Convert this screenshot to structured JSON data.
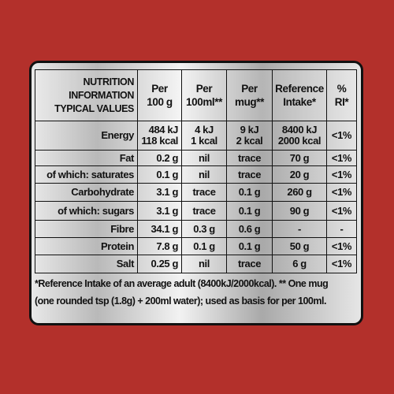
{
  "table": {
    "header": [
      [
        "NUTRITION",
        "INFORMATION",
        "TYPICAL VALUES"
      ],
      [
        "Per",
        "100 g"
      ],
      [
        "Per",
        "100ml**"
      ],
      [
        "Per",
        "mug**"
      ],
      [
        "Reference",
        "Intake*"
      ],
      [
        "%",
        "RI*"
      ]
    ],
    "rows": [
      [
        [
          "Energy"
        ],
        [
          "484 kJ",
          "118 kcal"
        ],
        [
          "4 kJ",
          "1 kcal"
        ],
        [
          "9 kJ",
          "2 kcal"
        ],
        [
          "8400 kJ",
          "2000 kcal"
        ],
        [
          "<1%"
        ]
      ],
      [
        [
          "Fat"
        ],
        [
          "0.2 g"
        ],
        [
          "nil"
        ],
        [
          "trace"
        ],
        [
          "70 g"
        ],
        [
          "<1%"
        ]
      ],
      [
        [
          "of which: saturates"
        ],
        [
          "0.1 g"
        ],
        [
          "nil"
        ],
        [
          "trace"
        ],
        [
          "20 g"
        ],
        [
          "<1%"
        ]
      ],
      [
        [
          "Carbohydrate"
        ],
        [
          "3.1 g"
        ],
        [
          "trace"
        ],
        [
          "0.1 g"
        ],
        [
          "260 g"
        ],
        [
          "<1%"
        ]
      ],
      [
        [
          "of which: sugars"
        ],
        [
          "3.1 g"
        ],
        [
          "trace"
        ],
        [
          "0.1 g"
        ],
        [
          "90 g"
        ],
        [
          "<1%"
        ]
      ],
      [
        [
          "Fibre"
        ],
        [
          "34.1 g"
        ],
        [
          "0.3 g"
        ],
        [
          "0.6 g"
        ],
        [
          "-"
        ],
        [
          "-"
        ]
      ],
      [
        [
          "Protein"
        ],
        [
          "7.8 g"
        ],
        [
          "0.1 g"
        ],
        [
          "0.1 g"
        ],
        [
          "50 g"
        ],
        [
          "<1%"
        ]
      ],
      [
        [
          "Salt"
        ],
        [
          "0.25 g"
        ],
        [
          "nil"
        ],
        [
          "trace"
        ],
        [
          "6 g"
        ],
        [
          "<1%"
        ]
      ]
    ]
  },
  "footnote": [
    "*Reference Intake of an average adult (8400kJ/2000kcal). ** One mug",
    "(one rounded tsp (1.8g) + 200ml water); used as basis for per 100ml."
  ]
}
